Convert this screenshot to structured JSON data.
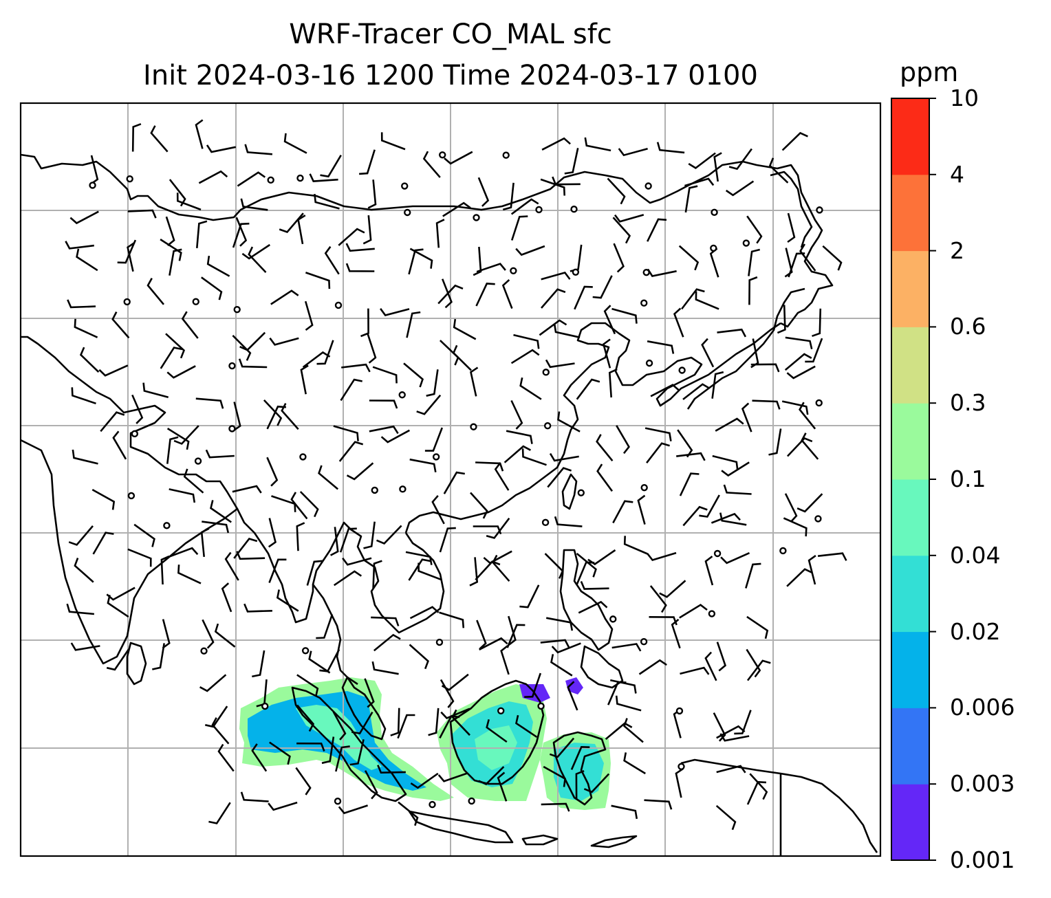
{
  "title_line1": "WRF-Tracer CO_MAL sfc",
  "title_line2": "Init 2024-03-16 1200 Time 2024-03-17 0100",
  "colorbar": {
    "unit": "ppm",
    "levels": [
      "0.001",
      "0.003",
      "0.006",
      "0.02",
      "0.04",
      "0.1",
      "0.3",
      "0.6",
      "2",
      "4",
      "10"
    ],
    "colors": [
      "#6427f7",
      "#3375f5",
      "#04b2ea",
      "#33dfd5",
      "#68f8bd",
      "#9afa9c",
      "#d0e185",
      "#fcb164",
      "#fd7239",
      "#fc2b17"
    ]
  },
  "map": {
    "projection_grid": "lat-lon gridlines",
    "field": "CO_MAL surface tracer concentration",
    "wind_symbols": "wind barbs and calm circles"
  }
}
